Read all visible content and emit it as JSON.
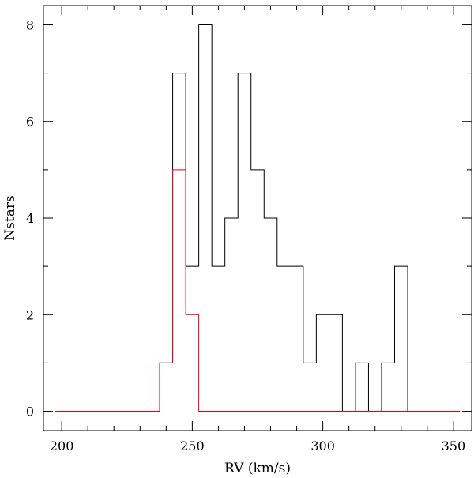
{
  "chart_data": {
    "type": "histogram",
    "title": "",
    "xlabel": "RV (km/s)",
    "ylabel": "Nstars",
    "xlim": [
      193,
      357
    ],
    "ylim": [
      -0.4,
      8.4
    ],
    "x_major_ticks": [
      200,
      250,
      300,
      350
    ],
    "x_tick_labels": [
      "200",
      "250",
      "300",
      "350"
    ],
    "y_major_ticks": [
      0,
      2,
      4,
      6,
      8
    ],
    "y_tick_labels": [
      "0",
      "2",
      "4",
      "6",
      "8"
    ],
    "x_minor_step": 10,
    "y_minor_step": 1,
    "grid": false,
    "legend": "none",
    "bin_edges": [
      197.5,
      202.5,
      207.5,
      212.5,
      217.5,
      222.5,
      227.5,
      232.5,
      237.5,
      242.5,
      247.5,
      252.5,
      257.5,
      262.5,
      267.5,
      272.5,
      277.5,
      282.5,
      287.5,
      292.5,
      297.5,
      302.5,
      307.5,
      312.5,
      317.5,
      322.5,
      327.5,
      332.5,
      337.5,
      342.5,
      347.5,
      352.5
    ],
    "series": [
      {
        "color": "#000000",
        "counts": [
          0,
          0,
          0,
          0,
          0,
          0,
          0,
          0,
          1,
          7,
          3,
          8,
          3,
          4,
          7,
          5,
          4,
          3,
          3,
          1,
          2,
          2,
          0,
          1,
          0,
          1,
          3,
          0,
          0,
          0,
          0
        ]
      },
      {
        "color": "#e8000b",
        "counts": [
          0,
          0,
          0,
          0,
          0,
          0,
          0,
          0,
          1,
          5,
          2,
          0,
          0,
          0,
          0,
          0,
          0,
          0,
          0,
          0,
          0,
          0,
          0,
          0,
          0,
          0,
          0,
          0,
          0,
          0,
          0
        ]
      }
    ]
  }
}
